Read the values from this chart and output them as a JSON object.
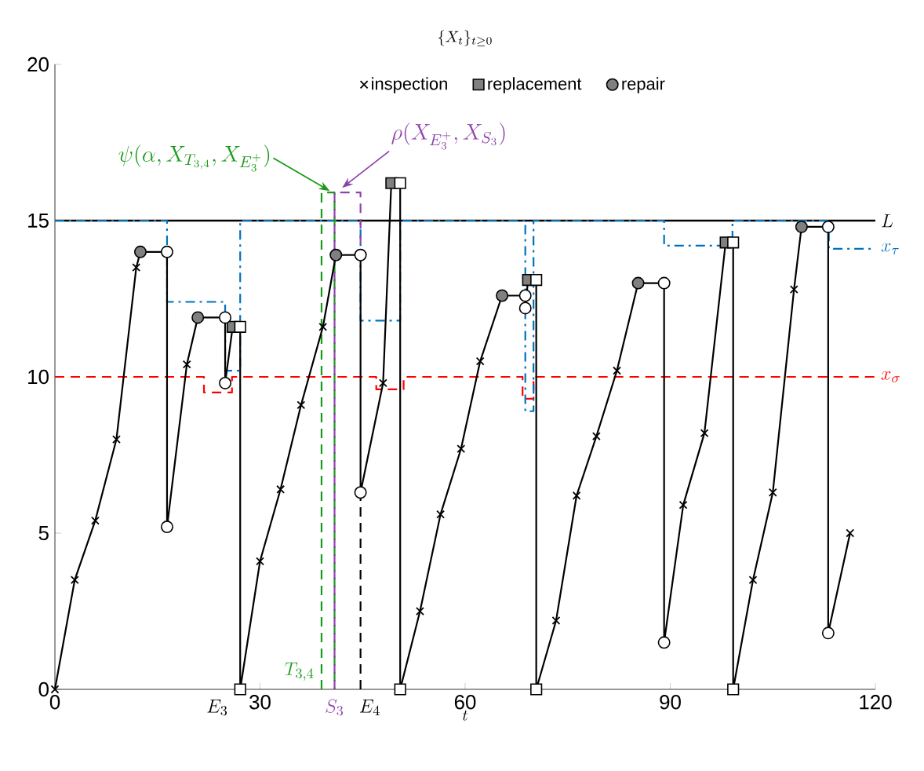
{
  "chart_data": {
    "type": "line",
    "title": "\\{X_t\\}_{t\\geq 0}",
    "xlabel": "t",
    "xlim": [
      0,
      120
    ],
    "ylim": [
      0,
      20
    ],
    "xticks": [
      0,
      30,
      60,
      90,
      120
    ],
    "yticks": [
      0,
      5,
      10,
      15,
      20
    ],
    "grid": false,
    "legend": "top",
    "ref_lines": [
      {
        "axis": "y",
        "value": 15,
        "label": "L",
        "color": "#000000",
        "line_style": "solid"
      }
    ],
    "annotations": [
      {
        "text": "\\psi(\\alpha, X_{T_{3,4}}, X_{E_3^+})",
        "x": 40.2,
        "y": 15.9
      },
      {
        "text": "\\rho(X_{E_3^+}, X_{S_3})",
        "x": 42.0,
        "y": 16.0
      },
      "E_3",
      {
        "text": "E_4",
        "x": 44.7,
        "y": 0
      }
    ],
    "series": [
      {
        "type": "step",
        "name": "x_\\sigma",
        "color": "#ff0000",
        "line_style": "dashed",
        "marker": "none",
        "x": [
          0,
          21.8,
          25.9,
          47,
          51,
          68.4,
          70,
          120
        ],
        "values": [
          10,
          9.5,
          10,
          9.6,
          10,
          9.3,
          10,
          10
        ]
      },
      {
        "type": "step",
        "name": "x_\\tau",
        "color": "#0072bd",
        "line_style": "dashdot",
        "marker": "none",
        "x": [
          0,
          16.4,
          24.9,
          27.1,
          44.7,
          50.5,
          68.8,
          70,
          89.1,
          99.1,
          113.2,
          120
        ],
        "values": [
          15,
          12.4,
          10.2,
          15,
          11.8,
          15,
          8.9,
          15,
          14.2,
          15,
          14.1,
          14.1
        ]
      },
      {
        "name": "T_{3,4}",
        "color": "#1a9a1a",
        "line_style": "dashed",
        "marker": "none",
        "x": [
          39.0,
          39.0,
          40.9,
          40.9
        ],
        "values": [
          0,
          15.9,
          15.9,
          0
        ]
      },
      {
        "name": "S_3",
        "color": "#8e44ad",
        "line_style": "dashed",
        "marker": "none",
        "x": [
          40.9,
          40.9,
          44.7,
          44.7
        ],
        "values": [
          0,
          15.9,
          15.9,
          13.9
        ]
      },
      {
        "color": "#000000",
        "line_style": "dashed",
        "marker": "none",
        "x": [
          44.7,
          44.7
        ],
        "values": [
          0,
          6.3
        ]
      },
      {
        "color": "#000000",
        "line_style": "solid",
        "marker": "none",
        "x": [
          0,
          2.9,
          5.9,
          9.0,
          11.9,
          12.5,
          16.4,
          16.4,
          19.3,
          20.9,
          24.9,
          24.9,
          26.0,
          27.1,
          27.1,
          30.0,
          33.0,
          36.0,
          39.2,
          41.1,
          44.7,
          44.7,
          48.0,
          49.2,
          50.5,
          50.5,
          53.4,
          56.4,
          59.4,
          62.2,
          65.4,
          68.8,
          68.8,
          69.2,
          70.4,
          70.4,
          73.3,
          76.3,
          79.2,
          82.2,
          85.3,
          89.1,
          89.1,
          91.9,
          95.0,
          98.1,
          99.2,
          99.2,
          102.1,
          105.0,
          108.1,
          109.2,
          113.1,
          113.1,
          116.3
        ],
        "values": [
          0,
          3.5,
          5.4,
          8.0,
          13.5,
          14.0,
          14.0,
          5.2,
          10.4,
          11.9,
          11.9,
          9.8,
          11.6,
          11.6,
          0,
          4.1,
          6.4,
          9.1,
          11.6,
          13.9,
          13.9,
          6.3,
          9.8,
          16.2,
          16.2,
          0,
          2.5,
          5.6,
          7.7,
          10.5,
          12.6,
          12.6,
          12.2,
          13.1,
          13.1,
          0,
          2.2,
          6.2,
          8.1,
          10.2,
          13.0,
          13.0,
          1.5,
          5.9,
          8.2,
          14.3,
          14.3,
          0,
          3.5,
          6.3,
          12.8,
          14.8,
          14.8,
          1.8,
          5.0
        ]
      },
      {
        "type": "scatter",
        "name": "inspection",
        "color": "#000000",
        "marker": "cross",
        "x": [
          0,
          2.9,
          5.9,
          9.0,
          11.9,
          19.3,
          30.0,
          33.0,
          36.0,
          39.2,
          48.0,
          53.4,
          56.4,
          59.4,
          62.2,
          73.3,
          76.3,
          79.2,
          82.2,
          91.9,
          95.0,
          102.1,
          105.0,
          108.1,
          116.3
        ],
        "values": [
          0,
          3.5,
          5.4,
          8.0,
          13.5,
          10.4,
          4.1,
          6.4,
          9.1,
          11.6,
          9.8,
          2.5,
          5.6,
          7.7,
          10.5,
          2.2,
          6.2,
          8.1,
          10.2,
          5.9,
          8.2,
          3.5,
          6.3,
          12.8,
          5.0
        ]
      },
      {
        "type": "scatter",
        "name": "replacement",
        "color": "#808080",
        "marker": "square",
        "x": [
          26.0,
          49.2,
          69.2,
          98.1
        ],
        "values": [
          11.6,
          16.2,
          13.1,
          14.3
        ]
      },
      {
        "type": "scatter",
        "name": "repair",
        "color": "#808080",
        "marker": "circle",
        "x": [
          12.5,
          20.9,
          41.1,
          65.4,
          85.3,
          109.2
        ],
        "values": [
          14.0,
          11.9,
          13.9,
          12.6,
          13.0,
          14.8
        ]
      },
      {
        "type": "scatter",
        "color": "#ffffff",
        "marker": "circle",
        "x": [
          16.4,
          16.4,
          24.9,
          24.9,
          44.7,
          44.7,
          68.8,
          68.8,
          89.1,
          89.1,
          113.1,
          113.1
        ],
        "values": [
          14.0,
          5.2,
          11.9,
          9.8,
          13.9,
          6.3,
          12.6,
          12.2,
          13.0,
          1.5,
          14.8,
          1.8
        ]
      },
      {
        "type": "scatter",
        "color": "#ffffff",
        "marker": "square",
        "x": [
          27.1,
          50.5,
          70.4,
          99.2,
          27.1,
          50.5,
          70.4,
          99.2
        ],
        "values": [
          11.6,
          16.2,
          13.1,
          14.3,
          0,
          0,
          0,
          0
        ]
      }
    ]
  }
}
